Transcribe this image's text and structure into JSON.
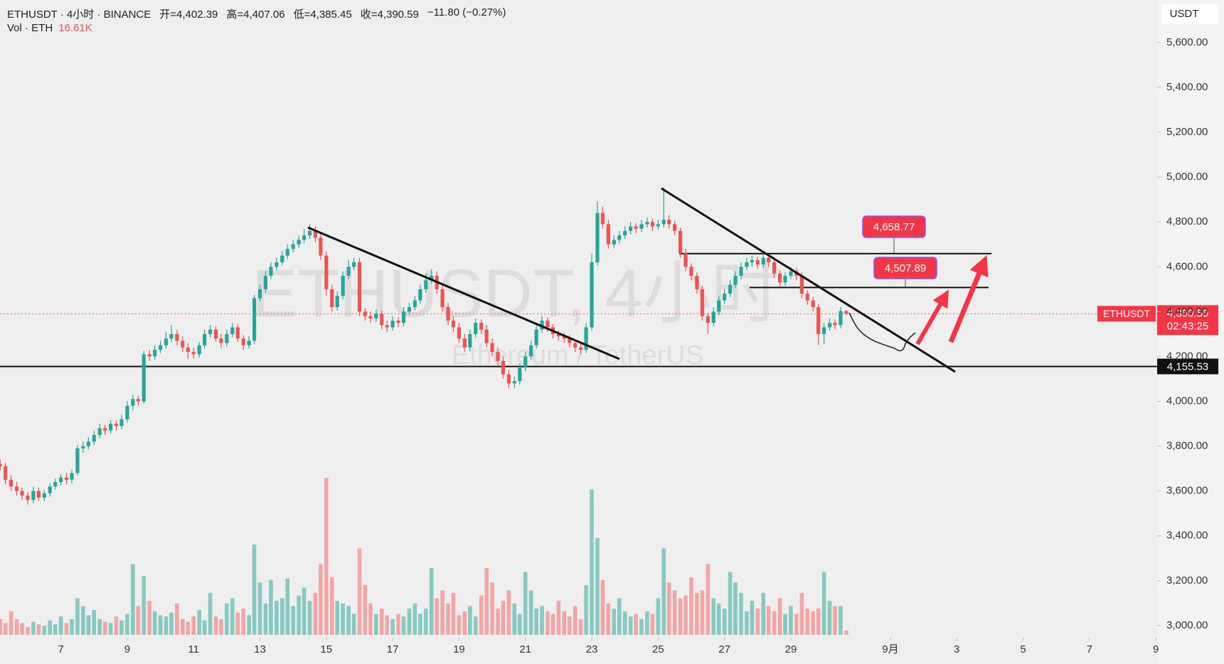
{
  "chart_data": {
    "type": "candlestick",
    "title": "ETHUSDT · 4小时 · BINANCE",
    "ohlc_text": [
      "开=4,402.39",
      "高=4,407.06",
      "低=4,385.45",
      "收=4,390.59",
      "−11.80 (−0.27%)"
    ],
    "up_color": "#26a69a",
    "down_color": "#ef5350",
    "x": [
      5.17,
      5.33,
      5.5,
      5.67,
      5.83,
      6,
      6.17,
      6.33,
      6.5,
      6.67,
      6.83,
      7,
      7.17,
      7.33,
      7.5,
      7.67,
      7.83,
      8,
      8.17,
      8.33,
      8.5,
      8.67,
      8.83,
      9,
      9.17,
      9.33,
      9.5,
      9.67,
      9.83,
      10,
      10.17,
      10.33,
      10.5,
      10.67,
      10.83,
      11,
      11.17,
      11.33,
      11.5,
      11.67,
      11.83,
      12,
      12.17,
      12.33,
      12.5,
      12.67,
      12.83,
      13,
      13.17,
      13.33,
      13.5,
      13.67,
      13.83,
      14,
      14.17,
      14.33,
      14.5,
      14.67,
      14.83,
      15,
      15.17,
      15.33,
      15.5,
      15.67,
      15.83,
      16,
      16.17,
      16.33,
      16.5,
      16.67,
      16.83,
      17,
      17.17,
      17.33,
      17.5,
      17.67,
      17.83,
      18,
      18.17,
      18.33,
      18.5,
      18.67,
      18.83,
      19,
      19.17,
      19.33,
      19.5,
      19.67,
      19.83,
      20,
      20.17,
      20.33,
      20.5,
      20.67,
      20.83,
      21,
      21.17,
      21.33,
      21.5,
      21.67,
      21.83,
      22,
      22.17,
      22.33,
      22.5,
      22.67,
      22.83,
      23,
      23.17,
      23.33,
      23.5,
      23.67,
      23.83,
      24,
      24.17,
      24.33,
      24.5,
      24.67,
      24.83,
      25,
      25.17,
      25.33,
      25.5,
      25.67,
      25.83,
      26,
      26.17,
      26.33,
      26.5,
      26.67,
      26.83,
      27,
      27.17,
      27.33,
      27.5,
      27.67,
      27.83,
      28,
      28.17,
      28.33,
      28.5,
      28.67,
      28.83,
      29,
      29.17,
      29.33,
      29.5,
      29.67,
      29.83,
      30,
      30.17,
      30.33,
      30.5,
      30.67
    ],
    "ohlc": [
      [
        3720,
        3740,
        3690,
        3710
      ],
      [
        3710,
        3725,
        3630,
        3650
      ],
      [
        3650,
        3670,
        3600,
        3620
      ],
      [
        3620,
        3640,
        3580,
        3600
      ],
      [
        3600,
        3615,
        3560,
        3580
      ],
      [
        3580,
        3595,
        3540,
        3560
      ],
      [
        3560,
        3620,
        3545,
        3600
      ],
      [
        3600,
        3615,
        3555,
        3570
      ],
      [
        3570,
        3605,
        3555,
        3590
      ],
      [
        3590,
        3635,
        3575,
        3620
      ],
      [
        3620,
        3655,
        3605,
        3640
      ],
      [
        3640,
        3675,
        3625,
        3660
      ],
      [
        3660,
        3680,
        3630,
        3650
      ],
      [
        3650,
        3695,
        3635,
        3680
      ],
      [
        3680,
        3805,
        3670,
        3790
      ],
      [
        3790,
        3820,
        3770,
        3800
      ],
      [
        3800,
        3840,
        3785,
        3820
      ],
      [
        3820,
        3870,
        3805,
        3850
      ],
      [
        3850,
        3900,
        3835,
        3880
      ],
      [
        3880,
        3895,
        3850,
        3870
      ],
      [
        3870,
        3915,
        3855,
        3900
      ],
      [
        3900,
        3915,
        3870,
        3890
      ],
      [
        3890,
        3940,
        3875,
        3920
      ],
      [
        3920,
        4000,
        3905,
        3980
      ],
      [
        3980,
        4030,
        3960,
        4010
      ],
      [
        4010,
        4025,
        3980,
        4000
      ],
      [
        4000,
        4225,
        3990,
        4210
      ],
      [
        4210,
        4230,
        4180,
        4200
      ],
      [
        4200,
        4250,
        4185,
        4230
      ],
      [
        4230,
        4270,
        4215,
        4250
      ],
      [
        4250,
        4310,
        4235,
        4280
      ],
      [
        4280,
        4340,
        4265,
        4300
      ],
      [
        4300,
        4320,
        4250,
        4270
      ],
      [
        4270,
        4290,
        4220,
        4240
      ],
      [
        4240,
        4260,
        4190,
        4220
      ],
      [
        4220,
        4240,
        4190,
        4210
      ],
      [
        4210,
        4265,
        4195,
        4250
      ],
      [
        4250,
        4320,
        4235,
        4300
      ],
      [
        4300,
        4340,
        4285,
        4320
      ],
      [
        4320,
        4335,
        4265,
        4280
      ],
      [
        4280,
        4300,
        4240,
        4260
      ],
      [
        4260,
        4320,
        4245,
        4300
      ],
      [
        4300,
        4350,
        4285,
        4330
      ],
      [
        4330,
        4345,
        4265,
        4280
      ],
      [
        4280,
        4295,
        4230,
        4250
      ],
      [
        4250,
        4290,
        4235,
        4270
      ],
      [
        4270,
        4475,
        4255,
        4460
      ],
      [
        4460,
        4520,
        4445,
        4500
      ],
      [
        4500,
        4580,
        4485,
        4560
      ],
      [
        4560,
        4620,
        4545,
        4600
      ],
      [
        4600,
        4640,
        4585,
        4620
      ],
      [
        4620,
        4670,
        4605,
        4650
      ],
      [
        4650,
        4700,
        4635,
        4680
      ],
      [
        4680,
        4720,
        4665,
        4700
      ],
      [
        4700,
        4740,
        4685,
        4720
      ],
      [
        4720,
        4770,
        4705,
        4740
      ],
      [
        4740,
        4790,
        4725,
        4760
      ],
      [
        4760,
        4780,
        4710,
        4730
      ],
      [
        4730,
        4750,
        4630,
        4650
      ],
      [
        4650,
        4670,
        4470,
        4500
      ],
      [
        4500,
        4520,
        4400,
        4420
      ],
      [
        4420,
        4490,
        4405,
        4470
      ],
      [
        4470,
        4580,
        4455,
        4560
      ],
      [
        4560,
        4630,
        4545,
        4600
      ],
      [
        4600,
        4640,
        4585,
        4620
      ],
      [
        4620,
        4640,
        4380,
        4400
      ],
      [
        4400,
        4415,
        4360,
        4380
      ],
      [
        4380,
        4400,
        4350,
        4370
      ],
      [
        4370,
        4410,
        4355,
        4390
      ],
      [
        4390,
        4405,
        4320,
        4340
      ],
      [
        4340,
        4360,
        4310,
        4330
      ],
      [
        4330,
        4380,
        4315,
        4360
      ],
      [
        4360,
        4375,
        4330,
        4350
      ],
      [
        4350,
        4420,
        4335,
        4400
      ],
      [
        4400,
        4440,
        4385,
        4420
      ],
      [
        4420,
        4470,
        4405,
        4450
      ],
      [
        4450,
        4520,
        4435,
        4500
      ],
      [
        4500,
        4570,
        4485,
        4540
      ],
      [
        4540,
        4590,
        4525,
        4560
      ],
      [
        4560,
        4580,
        4480,
        4500
      ],
      [
        4500,
        4520,
        4400,
        4420
      ],
      [
        4420,
        4440,
        4340,
        4360
      ],
      [
        4360,
        4380,
        4310,
        4330
      ],
      [
        4330,
        4350,
        4260,
        4280
      ],
      [
        4280,
        4300,
        4220,
        4240
      ],
      [
        4240,
        4320,
        4225,
        4300
      ],
      [
        4300,
        4370,
        4285,
        4350
      ],
      [
        4350,
        4365,
        4300,
        4320
      ],
      [
        4320,
        4340,
        4240,
        4260
      ],
      [
        4260,
        4280,
        4200,
        4220
      ],
      [
        4220,
        4240,
        4160,
        4180
      ],
      [
        4180,
        4200,
        4100,
        4120
      ],
      [
        4120,
        4140,
        4060,
        4080
      ],
      [
        4080,
        4110,
        4060,
        4090
      ],
      [
        4090,
        4170,
        4075,
        4150
      ],
      [
        4150,
        4220,
        4135,
        4200
      ],
      [
        4200,
        4270,
        4185,
        4250
      ],
      [
        4250,
        4340,
        4235,
        4320
      ],
      [
        4320,
        4380,
        4305,
        4360
      ],
      [
        4360,
        4375,
        4310,
        4330
      ],
      [
        4330,
        4345,
        4280,
        4300
      ],
      [
        4300,
        4315,
        4270,
        4290
      ],
      [
        4290,
        4305,
        4260,
        4280
      ],
      [
        4280,
        4295,
        4240,
        4260
      ],
      [
        4260,
        4275,
        4220,
        4240
      ],
      [
        4240,
        4255,
        4210,
        4230
      ],
      [
        4230,
        4350,
        4215,
        4330
      ],
      [
        4330,
        4660,
        4315,
        4620
      ],
      [
        4620,
        4890,
        4605,
        4840
      ],
      [
        4840,
        4870,
        4770,
        4790
      ],
      [
        4790,
        4810,
        4680,
        4700
      ],
      [
        4700,
        4740,
        4685,
        4720
      ],
      [
        4720,
        4760,
        4705,
        4740
      ],
      [
        4740,
        4780,
        4725,
        4760
      ],
      [
        4760,
        4800,
        4745,
        4780
      ],
      [
        4780,
        4795,
        4750,
        4770
      ],
      [
        4770,
        4810,
        4755,
        4790
      ],
      [
        4790,
        4820,
        4775,
        4800
      ],
      [
        4800,
        4815,
        4760,
        4780
      ],
      [
        4780,
        4810,
        4765,
        4790
      ],
      [
        4790,
        4955,
        4775,
        4810
      ],
      [
        4810,
        4830,
        4770,
        4790
      ],
      [
        4790,
        4805,
        4740,
        4760
      ],
      [
        4760,
        4775,
        4640,
        4660
      ],
      [
        4660,
        4680,
        4580,
        4600
      ],
      [
        4600,
        4615,
        4540,
        4560
      ],
      [
        4560,
        4575,
        4480,
        4500
      ],
      [
        4500,
        4515,
        4360,
        4380
      ],
      [
        4380,
        4395,
        4300,
        4350
      ],
      [
        4350,
        4420,
        4335,
        4400
      ],
      [
        4400,
        4470,
        4385,
        4450
      ],
      [
        4450,
        4500,
        4435,
        4480
      ],
      [
        4480,
        4540,
        4465,
        4520
      ],
      [
        4520,
        4580,
        4505,
        4560
      ],
      [
        4560,
        4620,
        4545,
        4600
      ],
      [
        4600,
        4640,
        4585,
        4620
      ],
      [
        4620,
        4650,
        4600,
        4630
      ],
      [
        4630,
        4645,
        4590,
        4610
      ],
      [
        4610,
        4660,
        4595,
        4640
      ],
      [
        4640,
        4655,
        4600,
        4620
      ],
      [
        4620,
        4635,
        4550,
        4570
      ],
      [
        4570,
        4585,
        4510,
        4530
      ],
      [
        4530,
        4575,
        4515,
        4560
      ],
      [
        4560,
        4600,
        4545,
        4580
      ],
      [
        4580,
        4595,
        4540,
        4560
      ],
      [
        4560,
        4575,
        4460,
        4480
      ],
      [
        4480,
        4495,
        4430,
        4450
      ],
      [
        4450,
        4465,
        4400,
        4420
      ],
      [
        4420,
        4435,
        4250,
        4300
      ],
      [
        4300,
        4350,
        4255,
        4330
      ],
      [
        4330,
        4370,
        4315,
        4350
      ],
      [
        4350,
        4365,
        4320,
        4340
      ],
      [
        4340,
        4420,
        4325,
        4402.39
      ],
      [
        4402.39,
        4407.06,
        4385.45,
        4390.59
      ]
    ],
    "volume": {
      "label": "Vol · ETH",
      "last_label": "16.61K",
      "up_color": "#86c9c1",
      "down_color": "#f2a5a5",
      "values": [
        60000,
        45000,
        90000,
        60000,
        45000,
        30000,
        50000,
        40000,
        35000,
        55000,
        40000,
        70000,
        45000,
        60000,
        140000,
        110000,
        75000,
        95000,
        60000,
        50000,
        45000,
        70000,
        55000,
        80000,
        270000,
        110000,
        225000,
        130000,
        90000,
        75000,
        70000,
        85000,
        120000,
        60000,
        50000,
        70000,
        95000,
        55000,
        160000,
        70000,
        60000,
        120000,
        140000,
        85000,
        100000,
        75000,
        345000,
        200000,
        120000,
        210000,
        130000,
        140000,
        215000,
        110000,
        150000,
        180000,
        130000,
        160000,
        270000,
        600000,
        220000,
        130000,
        120000,
        110000,
        80000,
        330000,
        190000,
        120000,
        80000,
        100000,
        75000,
        60000,
        80000,
        70000,
        100000,
        120000,
        80000,
        100000,
        255000,
        140000,
        170000,
        120000,
        160000,
        75000,
        90000,
        110000,
        70000,
        150000,
        255000,
        200000,
        100000,
        130000,
        170000,
        120000,
        80000,
        240000,
        170000,
        100000,
        110000,
        90000,
        80000,
        130000,
        90000,
        70000,
        110000,
        60000,
        190000,
        555000,
        370000,
        210000,
        120000,
        100000,
        140000,
        90000,
        70000,
        80000,
        60000,
        90000,
        80000,
        140000,
        330000,
        200000,
        170000,
        140000,
        150000,
        220000,
        160000,
        170000,
        270000,
        140000,
        120000,
        100000,
        240000,
        200000,
        160000,
        90000,
        130000,
        100000,
        160000,
        110000,
        90000,
        140000,
        80000,
        110000,
        80000,
        160000,
        100000,
        90000,
        100000,
        240000,
        130000,
        110000,
        110000,
        16610
      ]
    },
    "xlim": [
      5.165,
      40.04
    ],
    "xticks": [
      7,
      9,
      11,
      13,
      15,
      17,
      19,
      21,
      23,
      25,
      27,
      29,
      {
        "value": 32,
        "label": "9月"
      },
      {
        "value": 34,
        "label": "3"
      },
      {
        "value": 36,
        "label": "5"
      },
      {
        "value": 38,
        "label": "7"
      },
      {
        "value": 40,
        "label": "9"
      }
    ],
    "ylim": [
      2952,
      5790
    ],
    "yticks": [
      {
        "value": 3000,
        "label": "3,000.00"
      },
      {
        "value": 3200,
        "label": "3,200.00"
      },
      {
        "value": 3400,
        "label": "3,400.00"
      },
      {
        "value": 3600,
        "label": "3,600.00"
      },
      {
        "value": 3800,
        "label": "3,800.00"
      },
      {
        "value": 4000,
        "label": "4,000.00"
      },
      {
        "value": 4200,
        "label": "4,200.00"
      },
      {
        "value": 4400,
        "label": "4,400.00"
      },
      {
        "value": 4600,
        "label": "4,600.00"
      },
      {
        "value": 4800,
        "label": "4,800.00"
      },
      {
        "value": 5000,
        "label": "5,000.00"
      },
      {
        "value": 5200,
        "label": "5,200.00"
      },
      {
        "value": 5400,
        "label": "5,400.00"
      },
      {
        "value": 5600,
        "label": "5,600.00"
      }
    ],
    "y_axis_unit": "USDT",
    "watermark": [
      "ETHUSDT, 4小时",
      "Ethereum / TetherUS"
    ],
    "support": {
      "value": 4155.53,
      "label": "4,155.53"
    },
    "last_price": {
      "symbol": "ETHUSDT",
      "value": 4390.59,
      "label": "4,390.59",
      "countdown": "02:43:25"
    },
    "targets": [
      {
        "value": 4658.77,
        "label": "4,658.77"
      },
      {
        "value": 4507.89,
        "label": "4,507.89"
      }
    ]
  }
}
